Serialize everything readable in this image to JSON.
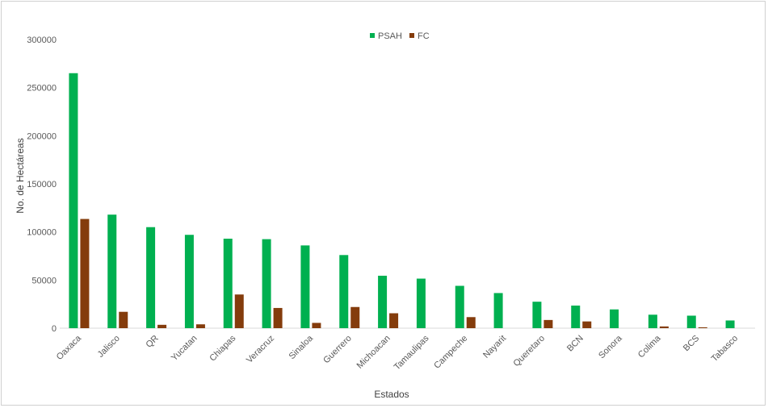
{
  "chart_data": {
    "type": "bar",
    "title": "",
    "xlabel": "Estados",
    "ylabel": "No. de Hectáreas",
    "ylim": [
      0,
      300000
    ],
    "yticks": [
      0,
      50000,
      100000,
      150000,
      200000,
      250000,
      300000
    ],
    "grid": false,
    "legend_position": "top-center",
    "categories": [
      "Oaxaca",
      "Jalisco",
      "QR",
      "Yucatan",
      "Chiapas",
      "Veracruz",
      "Sinaloa",
      "Guerrero",
      "Michoacan",
      "Tamaulipas",
      "Campeche",
      "Nayarit",
      "Queretaro",
      "BCN",
      "Sonora",
      "Colima",
      "BCS",
      "Tabasco"
    ],
    "series": [
      {
        "name": "PSAH",
        "color": "#00b050",
        "values": [
          265000,
          118000,
          105000,
          97000,
          93000,
          92500,
          86000,
          76000,
          54500,
          51500,
          44000,
          36500,
          27500,
          23500,
          19500,
          14000,
          13000,
          8000
        ]
      },
      {
        "name": "FC",
        "color": "#843c0c",
        "values": [
          113500,
          17000,
          3500,
          4000,
          35000,
          21000,
          5500,
          22000,
          15500,
          0,
          11500,
          0,
          8500,
          7000,
          0,
          1800,
          900,
          0
        ]
      }
    ]
  }
}
